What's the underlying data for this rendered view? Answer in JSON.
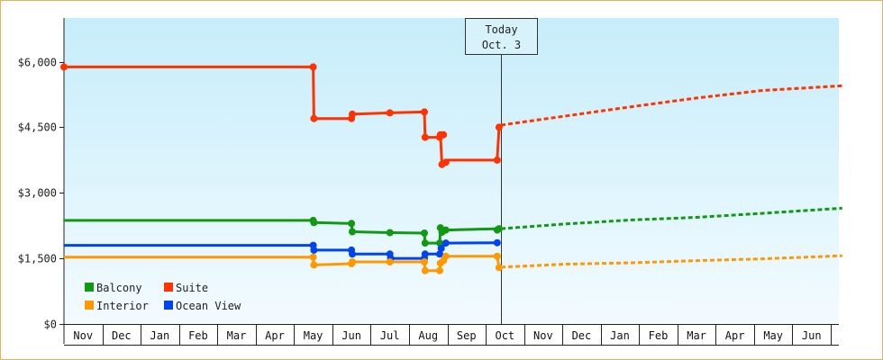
{
  "chart_data": {
    "type": "line",
    "title": "",
    "xlabel": "",
    "ylabel": "",
    "y_ticks": [
      "$0",
      "$1,500",
      "$3,000",
      "$4,500",
      "$6,000"
    ],
    "ylim": [
      0,
      7000
    ],
    "month_labels": [
      "Nov",
      "Dec",
      "Jan",
      "Feb",
      "Mar",
      "Apr",
      "May",
      "Jun",
      "Jul",
      "Aug",
      "Sep",
      "Oct",
      "Nov",
      "Dec",
      "Jan",
      "Feb",
      "Mar",
      "Apr",
      "May",
      "Jun"
    ],
    "today": {
      "line1": "Today",
      "line2": "Oct. 3",
      "x": 11.4
    },
    "grid": false,
    "legend_position": "bottom-left",
    "x_unit": "months from Nov 1",
    "series": [
      {
        "name": "Suite",
        "color": "#ff3300",
        "history": [
          [
            0,
            5880
          ],
          [
            6.5,
            5880
          ],
          [
            6.52,
            4700
          ],
          [
            7.5,
            4700
          ],
          [
            7.52,
            4800
          ],
          [
            8.5,
            4830
          ],
          [
            9.4,
            4850
          ],
          [
            9.42,
            4270
          ],
          [
            9.8,
            4270
          ],
          [
            9.82,
            4330
          ],
          [
            9.86,
            3650
          ],
          [
            9.96,
            3700
          ],
          [
            10,
            3750
          ],
          [
            11.3,
            3750
          ],
          [
            11.35,
            4500
          ]
        ],
        "markers": [
          [
            0,
            5880
          ],
          [
            6.5,
            5880
          ],
          [
            6.52,
            4700
          ],
          [
            7.5,
            4700
          ],
          [
            7.52,
            4800
          ],
          [
            8.5,
            4830
          ],
          [
            9.4,
            4850
          ],
          [
            9.42,
            4270
          ],
          [
            9.8,
            4270
          ],
          [
            9.82,
            4330
          ],
          [
            9.9,
            4330
          ],
          [
            9.86,
            3650
          ],
          [
            9.96,
            3700
          ],
          [
            11.3,
            3750
          ],
          [
            11.35,
            4500
          ]
        ],
        "forecast": [
          [
            11.4,
            4550
          ],
          [
            13.1,
            4760
          ],
          [
            14.8,
            4970
          ],
          [
            16.5,
            5170
          ],
          [
            18.2,
            5340
          ],
          [
            20.3,
            5450
          ]
        ]
      },
      {
        "name": "Balcony",
        "color": "#119911",
        "history": [
          [
            0,
            2370
          ],
          [
            6.5,
            2370
          ],
          [
            6.52,
            2320
          ],
          [
            7.5,
            2300
          ],
          [
            7.52,
            2110
          ],
          [
            8.5,
            2090
          ],
          [
            9.4,
            2080
          ],
          [
            9.42,
            1850
          ],
          [
            9.8,
            1850
          ],
          [
            9.82,
            2200
          ],
          [
            9.86,
            2100
          ],
          [
            10,
            2150
          ],
          [
            11.35,
            2180
          ]
        ],
        "markers": [
          [
            6.5,
            2370
          ],
          [
            6.52,
            2320
          ],
          [
            7.5,
            2300
          ],
          [
            7.52,
            2110
          ],
          [
            8.5,
            2090
          ],
          [
            9.4,
            2080
          ],
          [
            9.42,
            1850
          ],
          [
            9.8,
            1850
          ],
          [
            9.82,
            2200
          ],
          [
            9.86,
            2100
          ],
          [
            9.96,
            2150
          ],
          [
            11.3,
            2150
          ],
          [
            11.35,
            2180
          ]
        ],
        "forecast": [
          [
            11.4,
            2180
          ],
          [
            13.1,
            2290
          ],
          [
            14.8,
            2380
          ],
          [
            16.5,
            2440
          ],
          [
            18.2,
            2530
          ],
          [
            20.3,
            2650
          ]
        ]
      },
      {
        "name": "Ocean View",
        "color": "#0044ee",
        "history": [
          [
            0,
            1800
          ],
          [
            6.5,
            1800
          ],
          [
            6.52,
            1690
          ],
          [
            7.5,
            1690
          ],
          [
            7.52,
            1600
          ],
          [
            8.5,
            1600
          ],
          [
            8.52,
            1500
          ],
          [
            9.4,
            1500
          ],
          [
            9.42,
            1600
          ],
          [
            9.8,
            1600
          ],
          [
            9.82,
            1730
          ],
          [
            9.96,
            1850
          ],
          [
            11.3,
            1860
          ]
        ],
        "markers": [
          [
            6.5,
            1800
          ],
          [
            6.52,
            1690
          ],
          [
            7.5,
            1690
          ],
          [
            7.52,
            1600
          ],
          [
            8.5,
            1600
          ],
          [
            8.52,
            1500
          ],
          [
            9.4,
            1500
          ],
          [
            9.42,
            1600
          ],
          [
            9.8,
            1600
          ],
          [
            9.84,
            1730
          ],
          [
            9.96,
            1850
          ],
          [
            11.3,
            1860
          ]
        ],
        "forecast": []
      },
      {
        "name": "Interior",
        "color": "#ff9900",
        "history": [
          [
            0,
            1530
          ],
          [
            6.5,
            1530
          ],
          [
            6.52,
            1350
          ],
          [
            7.5,
            1380
          ],
          [
            7.52,
            1420
          ],
          [
            8.5,
            1420
          ],
          [
            9.4,
            1420
          ],
          [
            9.42,
            1220
          ],
          [
            9.8,
            1220
          ],
          [
            9.82,
            1390
          ],
          [
            9.96,
            1550
          ],
          [
            11.3,
            1550
          ],
          [
            11.35,
            1290
          ]
        ],
        "markers": [
          [
            6.5,
            1530
          ],
          [
            6.52,
            1350
          ],
          [
            7.5,
            1380
          ],
          [
            7.52,
            1420
          ],
          [
            8.5,
            1420
          ],
          [
            9.4,
            1420
          ],
          [
            9.42,
            1220
          ],
          [
            9.8,
            1220
          ],
          [
            9.82,
            1390
          ],
          [
            9.9,
            1450
          ],
          [
            9.96,
            1550
          ],
          [
            11.3,
            1550
          ],
          [
            11.35,
            1290
          ]
        ],
        "forecast": [
          [
            11.4,
            1300
          ],
          [
            13.1,
            1370
          ],
          [
            14.8,
            1400
          ],
          [
            16.5,
            1450
          ],
          [
            18.2,
            1490
          ],
          [
            20.3,
            1560
          ]
        ]
      }
    ],
    "legend": [
      {
        "name": "Balcony",
        "color": "#119911"
      },
      {
        "name": "Suite",
        "color": "#ff3300"
      },
      {
        "name": "Interior",
        "color": "#ff9900"
      },
      {
        "name": "Ocean View",
        "color": "#0044ee"
      }
    ]
  }
}
